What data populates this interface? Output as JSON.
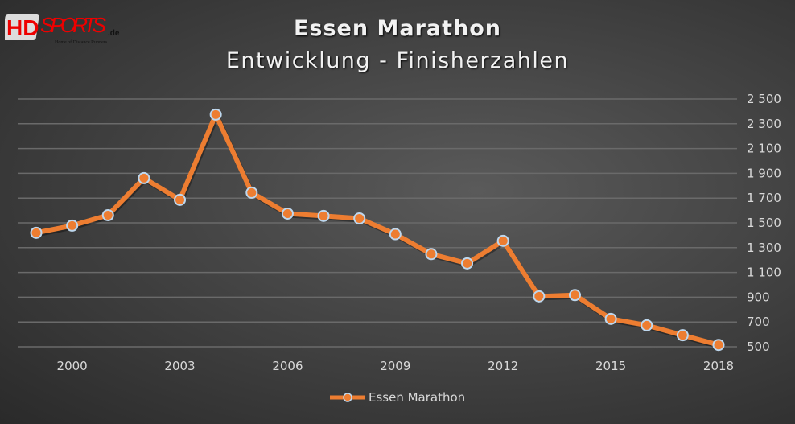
{
  "logo": {
    "text": "HDsports.de",
    "tagline": "Home of Distance Runners"
  },
  "colors": {
    "series": "#ed7d31",
    "marker_border": "#bdd7ee",
    "grid": "#6a6a6a",
    "text": "#d9d9d9"
  },
  "chart_data": {
    "type": "line",
    "title": "Essen Marathon",
    "subtitle": "Entwicklung - Finisherzahlen",
    "x": [
      1999,
      2000,
      2001,
      2002,
      2003,
      2004,
      2005,
      2006,
      2007,
      2008,
      2009,
      2010,
      2011,
      2012,
      2013,
      2014,
      2015,
      2016,
      2017,
      2018
    ],
    "x_tick_labels": [
      "2000",
      "2003",
      "2006",
      "2009",
      "2012",
      "2015",
      "2018"
    ],
    "series": [
      {
        "name": "Essen Marathon",
        "values": [
          1420,
          1478,
          1562,
          1861,
          1686,
          2374,
          1744,
          1575,
          1556,
          1536,
          1409,
          1248,
          1173,
          1355,
          907,
          917,
          725,
          673,
          593,
          515
        ]
      }
    ],
    "ylim": [
      500,
      2500
    ],
    "y_tick_labels": [
      "500",
      "700",
      "900",
      "1 100",
      "1 300",
      "1 500",
      "1 700",
      "1 900",
      "2 100",
      "2 300",
      "2 500"
    ],
    "y_axis_position": "right",
    "grid": "horizontal",
    "legend": "bottom"
  }
}
